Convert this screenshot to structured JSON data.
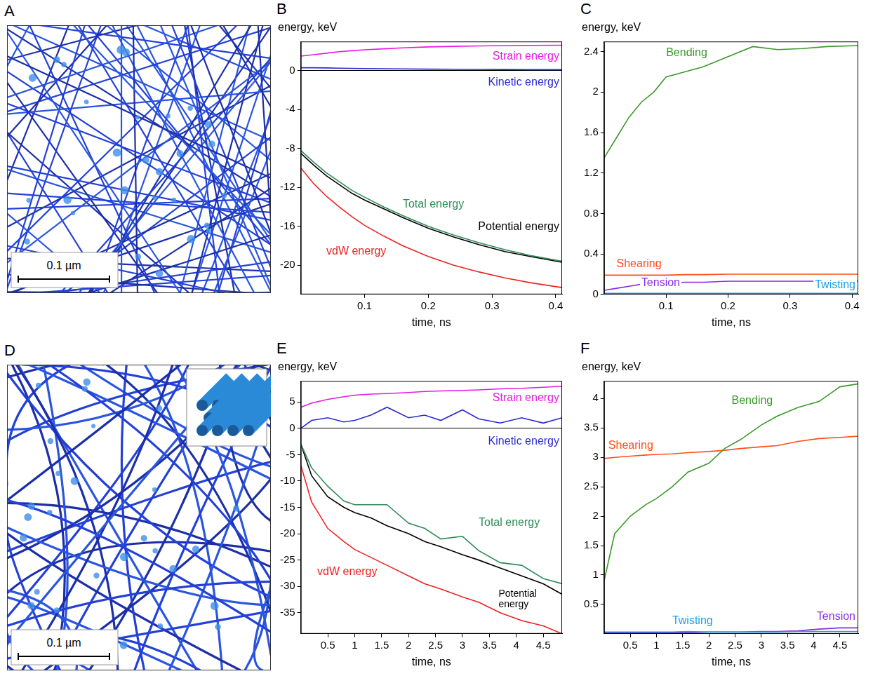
{
  "images": [
    {
      "panel": "A",
      "scale_bar": "0.1 µm"
    },
    {
      "panel": "D",
      "scale_bar": "0.1 µm"
    }
  ],
  "chart_data": [
    {
      "panel": "B",
      "type": "line",
      "title": "energy, keV",
      "x_label": "time, ns",
      "x": [
        0,
        0.02,
        0.04,
        0.06,
        0.08,
        0.1,
        0.13,
        0.16,
        0.2,
        0.24,
        0.28,
        0.32,
        0.36,
        0.41
      ],
      "xlim": [
        0,
        0.41
      ],
      "xticks": [
        0.1,
        0.2,
        0.3,
        0.4
      ],
      "ylim": [
        -23,
        3
      ],
      "yticks": [
        -20,
        -16,
        -12,
        -8,
        -4,
        0
      ],
      "series": [
        {
          "name": "Strain energy",
          "color": "#e619e6",
          "values": [
            1.5,
            1.65,
            1.8,
            1.95,
            2.05,
            2.15,
            2.25,
            2.35,
            2.45,
            2.5,
            2.55,
            2.58,
            2.6,
            2.62
          ]
        },
        {
          "name": "Kinetic energy",
          "color": "#2a2ad4",
          "values": [
            0.3,
            0.3,
            0.28,
            0.26,
            0.24,
            0.22,
            0.2,
            0.18,
            0.16,
            0.15,
            0.13,
            0.12,
            0.1,
            0.1
          ]
        },
        {
          "name": "Total energy",
          "color": "#2e8b57",
          "values": [
            -8.2,
            -9.4,
            -10.5,
            -11.4,
            -12.3,
            -13,
            -14,
            -14.9,
            -16,
            -16.9,
            -17.7,
            -18.4,
            -19,
            -19.6
          ]
        },
        {
          "name": "Potential energy",
          "color": "#000000",
          "values": [
            -8.5,
            -9.7,
            -10.8,
            -11.7,
            -12.6,
            -13.3,
            -14.2,
            -15.1,
            -16.2,
            -17.1,
            -17.9,
            -18.6,
            -19.1,
            -19.7
          ]
        },
        {
          "name": "vdW energy",
          "color": "#ee2222",
          "values": [
            -10,
            -11.6,
            -12.9,
            -14,
            -15,
            -15.9,
            -17,
            -18,
            -19.1,
            -20,
            -20.7,
            -21.3,
            -21.8,
            -22.3
          ]
        }
      ]
    },
    {
      "panel": "C",
      "type": "line",
      "title": "energy, keV",
      "x_label": "time, ns",
      "x": [
        0,
        0.02,
        0.04,
        0.06,
        0.08,
        0.1,
        0.13,
        0.16,
        0.2,
        0.24,
        0.28,
        0.32,
        0.36,
        0.41
      ],
      "xlim": [
        0,
        0.41
      ],
      "xticks": [
        0.1,
        0.2,
        0.3,
        0.4
      ],
      "ylim": [
        0,
        2.5
      ],
      "yticks": [
        0,
        0.4,
        0.8,
        1.2,
        1.6,
        2,
        2.4
      ],
      "series": [
        {
          "name": "Bending",
          "color": "#3a9a2a",
          "values": [
            1.35,
            1.55,
            1.75,
            1.9,
            2.0,
            2.15,
            2.2,
            2.25,
            2.35,
            2.45,
            2.42,
            2.43,
            2.45,
            2.46
          ]
        },
        {
          "name": "Shearing",
          "color": "#ff4d1a",
          "values": [
            0.19,
            0.19,
            0.19,
            0.19,
            0.19,
            0.19,
            0.195,
            0.195,
            0.2,
            0.2,
            0.2,
            0.2,
            0.2,
            0.2
          ]
        },
        {
          "name": "Tension",
          "color": "#8a2be2",
          "values": [
            0.04,
            0.06,
            0.08,
            0.1,
            0.11,
            0.11,
            0.12,
            0.12,
            0.13,
            0.13,
            0.13,
            0.13,
            0.13,
            0.13
          ]
        },
        {
          "name": "Twisting",
          "color": "#1e9ef0",
          "values": [
            0.01,
            0.01,
            0.01,
            0.01,
            0.01,
            0.01,
            0.01,
            0.01,
            0.01,
            0.01,
            0.01,
            0.01,
            0.01,
            0.01
          ]
        }
      ]
    },
    {
      "panel": "E",
      "type": "line",
      "title": "energy, keV",
      "x_label": "time, ns",
      "x": [
        0,
        0.2,
        0.5,
        0.8,
        1,
        1.3,
        1.6,
        2,
        2.3,
        2.6,
        3,
        3.3,
        3.7,
        4.1,
        4.5,
        4.85
      ],
      "xlim": [
        0,
        4.85
      ],
      "xticks": [
        0.5,
        1,
        1.5,
        2,
        2.5,
        3,
        3.5,
        4,
        4.5
      ],
      "ylim": [
        -39,
        9
      ],
      "yticks": [
        -35,
        -30,
        -25,
        -20,
        -15,
        -10,
        -5,
        0,
        5
      ],
      "series": [
        {
          "name": "Strain energy",
          "color": "#e619e6",
          "values": [
            4,
            4.8,
            5.5,
            6,
            6.3,
            6.5,
            6.6,
            6.8,
            7,
            7.1,
            7.2,
            7.3,
            7.5,
            7.6,
            7.8,
            8
          ]
        },
        {
          "name": "Kinetic energy",
          "color": "#2a2ad4",
          "values": [
            0,
            1.5,
            2,
            1.2,
            1.5,
            2.5,
            4,
            2,
            2.5,
            1.5,
            3.5,
            1.8,
            1,
            2,
            1,
            2
          ]
        },
        {
          "name": "Total energy",
          "color": "#2e8b57",
          "values": [
            -3,
            -7.5,
            -11,
            -13.8,
            -14.5,
            -14.5,
            -14.5,
            -18,
            -19,
            -21,
            -20.5,
            -23.2,
            -25.5,
            -26,
            -28.5,
            -29.5
          ]
        },
        {
          "name": "Potential energy",
          "color": "#000000",
          "values": [
            -3,
            -9,
            -13,
            -15,
            -16,
            -17,
            -18.5,
            -20,
            -21.5,
            -22.5,
            -24,
            -25,
            -26.5,
            -28,
            -29.5,
            -31.5
          ]
        },
        {
          "name": "vdW energy",
          "color": "#ee2222",
          "values": [
            -7,
            -14,
            -19,
            -21.5,
            -23,
            -24.5,
            -26,
            -28,
            -29.5,
            -30.5,
            -32,
            -33,
            -35,
            -36.5,
            -37.5,
            -39
          ]
        }
      ]
    },
    {
      "panel": "F",
      "type": "line",
      "title": "energy, keV",
      "x_label": "time, ns",
      "x": [
        0,
        0.2,
        0.5,
        0.8,
        1,
        1.3,
        1.6,
        2,
        2.3,
        2.6,
        3,
        3.3,
        3.7,
        4.1,
        4.5,
        4.85
      ],
      "xlim": [
        0,
        4.85
      ],
      "xticks": [
        0.5,
        1,
        1.5,
        2,
        2.5,
        3,
        3.5,
        4,
        4.5
      ],
      "ylim": [
        0,
        4.3
      ],
      "yticks": [
        0.5,
        1,
        1.5,
        2,
        2.5,
        3,
        3.5,
        4
      ],
      "series": [
        {
          "name": "Bending",
          "color": "#3a9a2a",
          "values": [
            0.9,
            1.7,
            2.0,
            2.2,
            2.3,
            2.5,
            2.75,
            2.9,
            3.15,
            3.3,
            3.55,
            3.7,
            3.85,
            3.95,
            4.2,
            4.25
          ]
        },
        {
          "name": "Shearing",
          "color": "#ff4d1a",
          "values": [
            2.98,
            3.0,
            3.02,
            3.04,
            3.05,
            3.06,
            3.08,
            3.1,
            3.12,
            3.15,
            3.18,
            3.2,
            3.27,
            3.32,
            3.34,
            3.36
          ]
        },
        {
          "name": "Twisting",
          "color": "#1e9ef0",
          "values": [
            0.03,
            0.03,
            0.03,
            0.03,
            0.03,
            0.03,
            0.04,
            0.03,
            0.03,
            0.03,
            0.03,
            0.03,
            0.04,
            0.04,
            0.04,
            0.04
          ]
        },
        {
          "name": "Tension",
          "color": "#8a2be2",
          "values": [
            0.02,
            0.02,
            0.02,
            0.02,
            0.02,
            0.02,
            0.02,
            0.03,
            0.03,
            0.03,
            0.04,
            0.04,
            0.05,
            0.08,
            0.1,
            0.1
          ]
        }
      ]
    }
  ]
}
